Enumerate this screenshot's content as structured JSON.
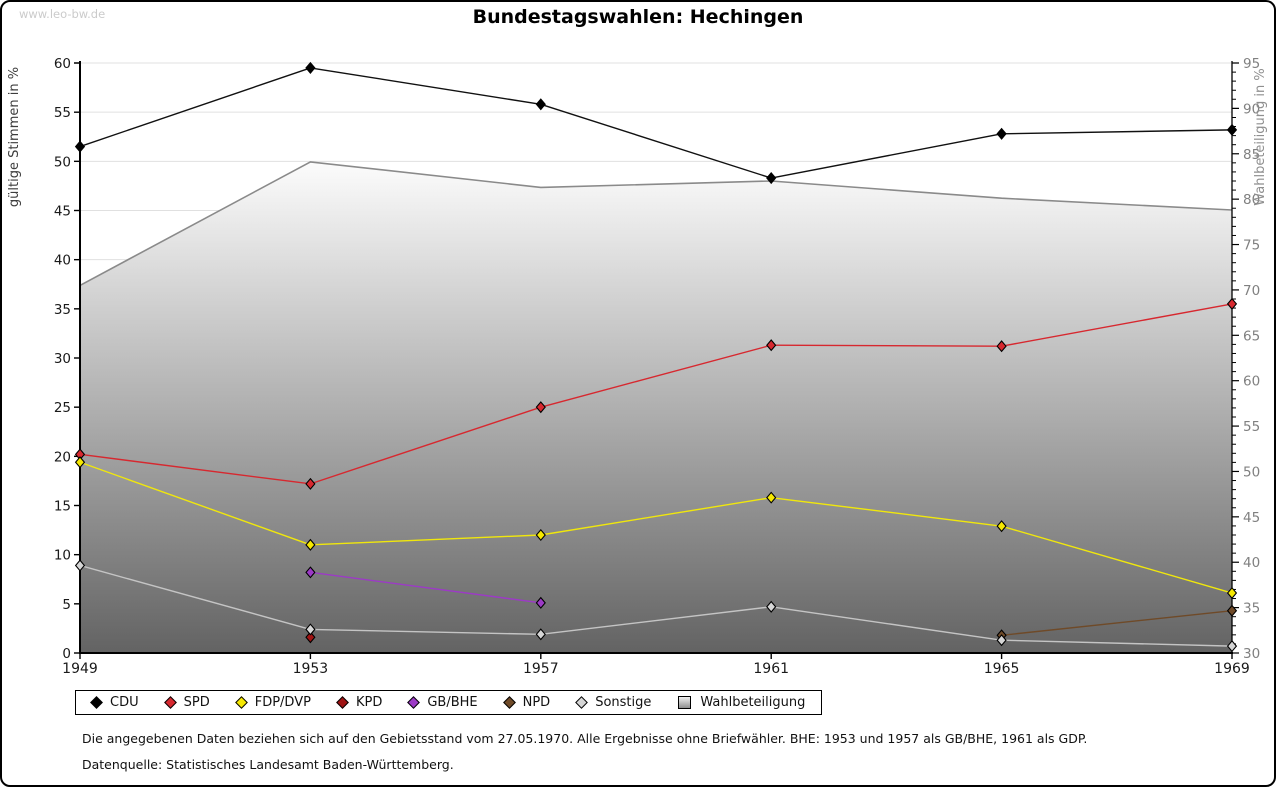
{
  "watermark": "www.leo-bw.de",
  "title": "Bundestagswahlen: Hechingen",
  "footnotes": {
    "line1": "Die angegebenen Daten beziehen sich auf den Gebietsstand vom 27.05.1970. Alle Ergebnisse ohne Briefwähler. BHE: 1953 und 1957 als GB/BHE, 1961 als GDP.",
    "line2": "Datenquelle: Statistisches Landesamt Baden-Württemberg."
  },
  "chart_data": {
    "type": "line",
    "title": "Bundestagswahlen: Hechingen",
    "x": [
      "1949",
      "1953",
      "1957",
      "1961",
      "1965",
      "1969"
    ],
    "left_axis": {
      "label": "gültige Stimmen in %",
      "min": 0,
      "max": 60,
      "tick_step": 5,
      "grid": true
    },
    "right_axis": {
      "label": "Wahlbeteiligung in %",
      "min": 30,
      "max": 95,
      "tick_step": 5,
      "minor_tick_step": 1
    },
    "legend_position": "bottom",
    "series": [
      {
        "name": "CDU",
        "color": "#000000",
        "line_color": "#111111",
        "axis": "left",
        "marker": "diamond",
        "values": [
          51.5,
          59.5,
          55.8,
          48.3,
          52.8,
          53.2
        ]
      },
      {
        "name": "SPD",
        "color": "#d7282f",
        "line_color": "#d7282f",
        "axis": "left",
        "marker": "diamond",
        "values": [
          20.2,
          17.2,
          25.0,
          31.3,
          31.2,
          35.5
        ]
      },
      {
        "name": "FDP/DVP",
        "color": "#f6e800",
        "line_color": "#f0e70c",
        "axis": "left",
        "marker": "diamond",
        "values": [
          19.4,
          11.0,
          12.0,
          15.8,
          12.9,
          6.1
        ]
      },
      {
        "name": "KPD",
        "color": "#a01313",
        "line_color": "#a01313",
        "axis": "left",
        "marker": "diamond",
        "values": [
          null,
          1.6,
          null,
          null,
          null,
          null
        ]
      },
      {
        "name": "GB/BHE",
        "color": "#9c3ac6",
        "line_color": "#9c3ac6",
        "axis": "left",
        "marker": "diamond",
        "values": [
          null,
          8.2,
          5.1,
          null,
          null,
          null
        ]
      },
      {
        "name": "NPD",
        "color": "#6f4a28",
        "line_color": "#6f4a28",
        "axis": "left",
        "marker": "diamond",
        "values": [
          null,
          null,
          null,
          null,
          1.8,
          4.3
        ]
      },
      {
        "name": "Sonstige",
        "color": "#d6d6d6",
        "line_color": "#c4c4c4",
        "axis": "left",
        "marker": "diamond",
        "values": [
          8.9,
          2.4,
          1.9,
          4.7,
          1.3,
          0.7
        ]
      }
    ],
    "turnout_series": {
      "name": "Wahlbeteiligung",
      "type": "area",
      "axis": "right",
      "line_color": "#8a8a8a",
      "fill_top": "#fcfcfc",
      "fill_bottom": "#636363",
      "values": [
        70.5,
        84.1,
        81.3,
        82.0,
        80.1,
        78.8
      ]
    }
  }
}
